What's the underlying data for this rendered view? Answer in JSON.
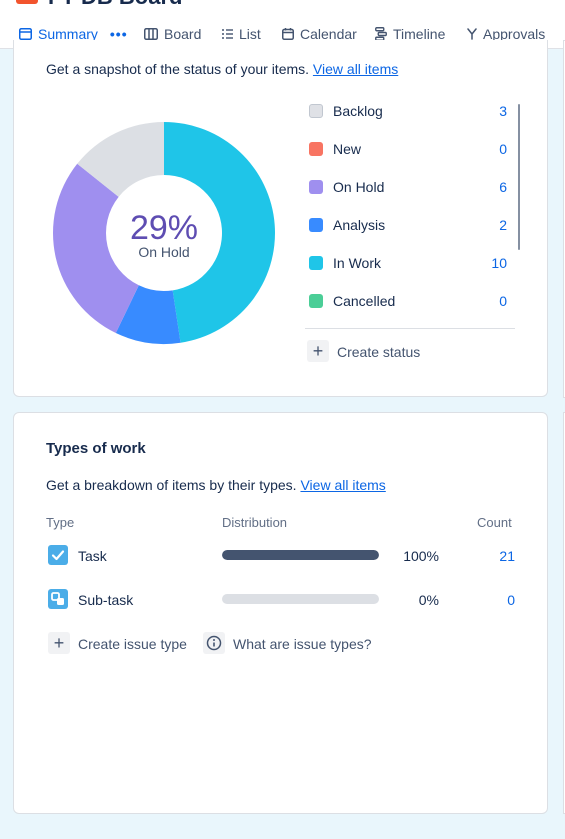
{
  "header": {
    "project_title": "FT DB Board",
    "tabs": [
      {
        "label": "Summary",
        "icon": "summary-icon",
        "active": true
      },
      {
        "label": "Board",
        "icon": "board-icon"
      },
      {
        "label": "List",
        "icon": "list-icon"
      },
      {
        "label": "Calendar",
        "icon": "calendar-icon"
      },
      {
        "label": "Timeline",
        "icon": "timeline-icon"
      },
      {
        "label": "Approvals",
        "icon": "approvals-icon"
      }
    ],
    "more_label": "•••"
  },
  "status_overview": {
    "description": "Get a snapshot of the status of your items.",
    "view_all_label": "View all items",
    "center_value": "29%",
    "center_label": "On Hold",
    "statuses": [
      {
        "label": "Backlog",
        "count": "3",
        "value": 3,
        "color": "#dfe1e6"
      },
      {
        "label": "New",
        "count": "0",
        "value": 0,
        "color": "#f87462"
      },
      {
        "label": "On Hold",
        "count": "6",
        "value": 6,
        "color": "#9f8fef"
      },
      {
        "label": "Analysis",
        "count": "2",
        "value": 2,
        "color": "#388bff"
      },
      {
        "label": "In Work",
        "count": "10",
        "value": 10,
        "color": "#1fc5e8"
      },
      {
        "label": "Cancelled",
        "count": "0",
        "value": 0,
        "color": "#4bce97"
      }
    ],
    "create_status_label": "Create status"
  },
  "types_of_work": {
    "title": "Types of work",
    "description": "Get a breakdown of items by their types.",
    "view_all_label": "View all items",
    "columns": {
      "type": "Type",
      "distribution": "Distribution",
      "count": "Count"
    },
    "rows": [
      {
        "label": "Task",
        "icon": "task-icon",
        "percent_label": "100%",
        "fraction": 1.0,
        "count": "21",
        "icon_color": "#4bade8"
      },
      {
        "label": "Sub-task",
        "icon": "subtask-icon",
        "percent_label": "0%",
        "fraction": 0.0,
        "count": "0",
        "icon_color": "#4bade8"
      }
    ],
    "create_type_label": "Create issue type",
    "what_are_label": "What are issue types?"
  }
}
